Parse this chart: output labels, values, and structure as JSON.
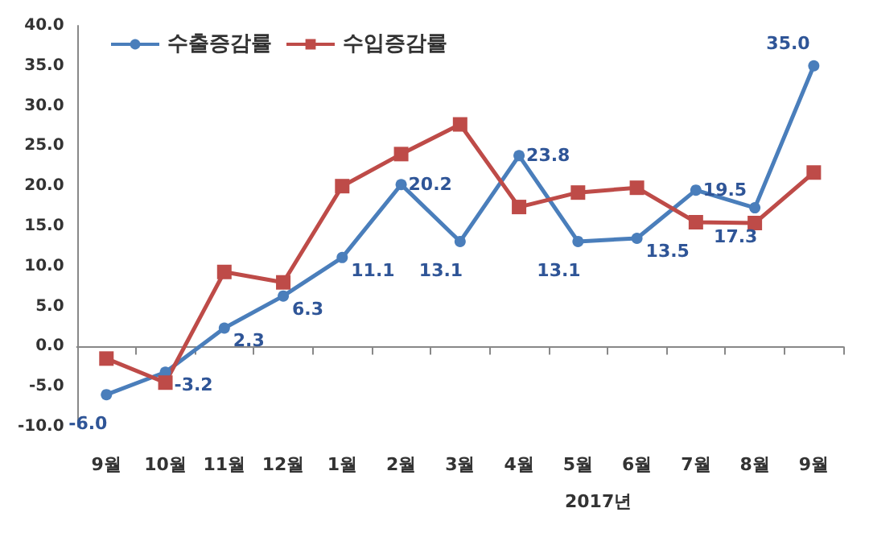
{
  "chart_data": {
    "type": "line",
    "categories": [
      "9월",
      "10월",
      "11월",
      "12월",
      "1월",
      "2월",
      "3월",
      "4월",
      "5월",
      "6월",
      "7월",
      "8월",
      "9월"
    ],
    "series": [
      {
        "name": "수출증감률",
        "color": "#4a7ebb",
        "marker": "circle",
        "values": [
          -6.0,
          -3.2,
          2.3,
          6.3,
          11.1,
          20.2,
          13.1,
          23.8,
          13.1,
          13.5,
          19.5,
          17.3,
          35.0
        ],
        "value_labels": [
          "-6.0",
          "-3.2",
          "2.3",
          "6.3",
          "11.1",
          "20.2",
          "13.1",
          "23.8",
          "13.1",
          "13.5",
          "19.5",
          "17.3",
          "35.0"
        ]
      },
      {
        "name": "수입증감률",
        "color": "#be4b48",
        "marker": "square",
        "values": [
          -1.5,
          -4.5,
          9.3,
          8.0,
          20.0,
          24.0,
          27.7,
          17.4,
          19.2,
          19.8,
          15.5,
          15.4,
          21.7
        ]
      }
    ],
    "ylim": [
      -10,
      40
    ],
    "yticks": [
      {
        "value": -10,
        "label": "-10.0"
      },
      {
        "value": -5,
        "label": "-5.0"
      },
      {
        "value": 0,
        "label": "0.0"
      },
      {
        "value": 5,
        "label": "5.0"
      },
      {
        "value": 10,
        "label": "10.0"
      },
      {
        "value": 15,
        "label": "15.0"
      },
      {
        "value": 20,
        "label": "20.0"
      },
      {
        "value": 25,
        "label": "25.0"
      },
      {
        "value": 30,
        "label": "30.0"
      },
      {
        "value": 35,
        "label": "35.0"
      },
      {
        "value": 40,
        "label": "40.0"
      }
    ],
    "legend": "top left",
    "annotations": [
      "2017년"
    ]
  }
}
